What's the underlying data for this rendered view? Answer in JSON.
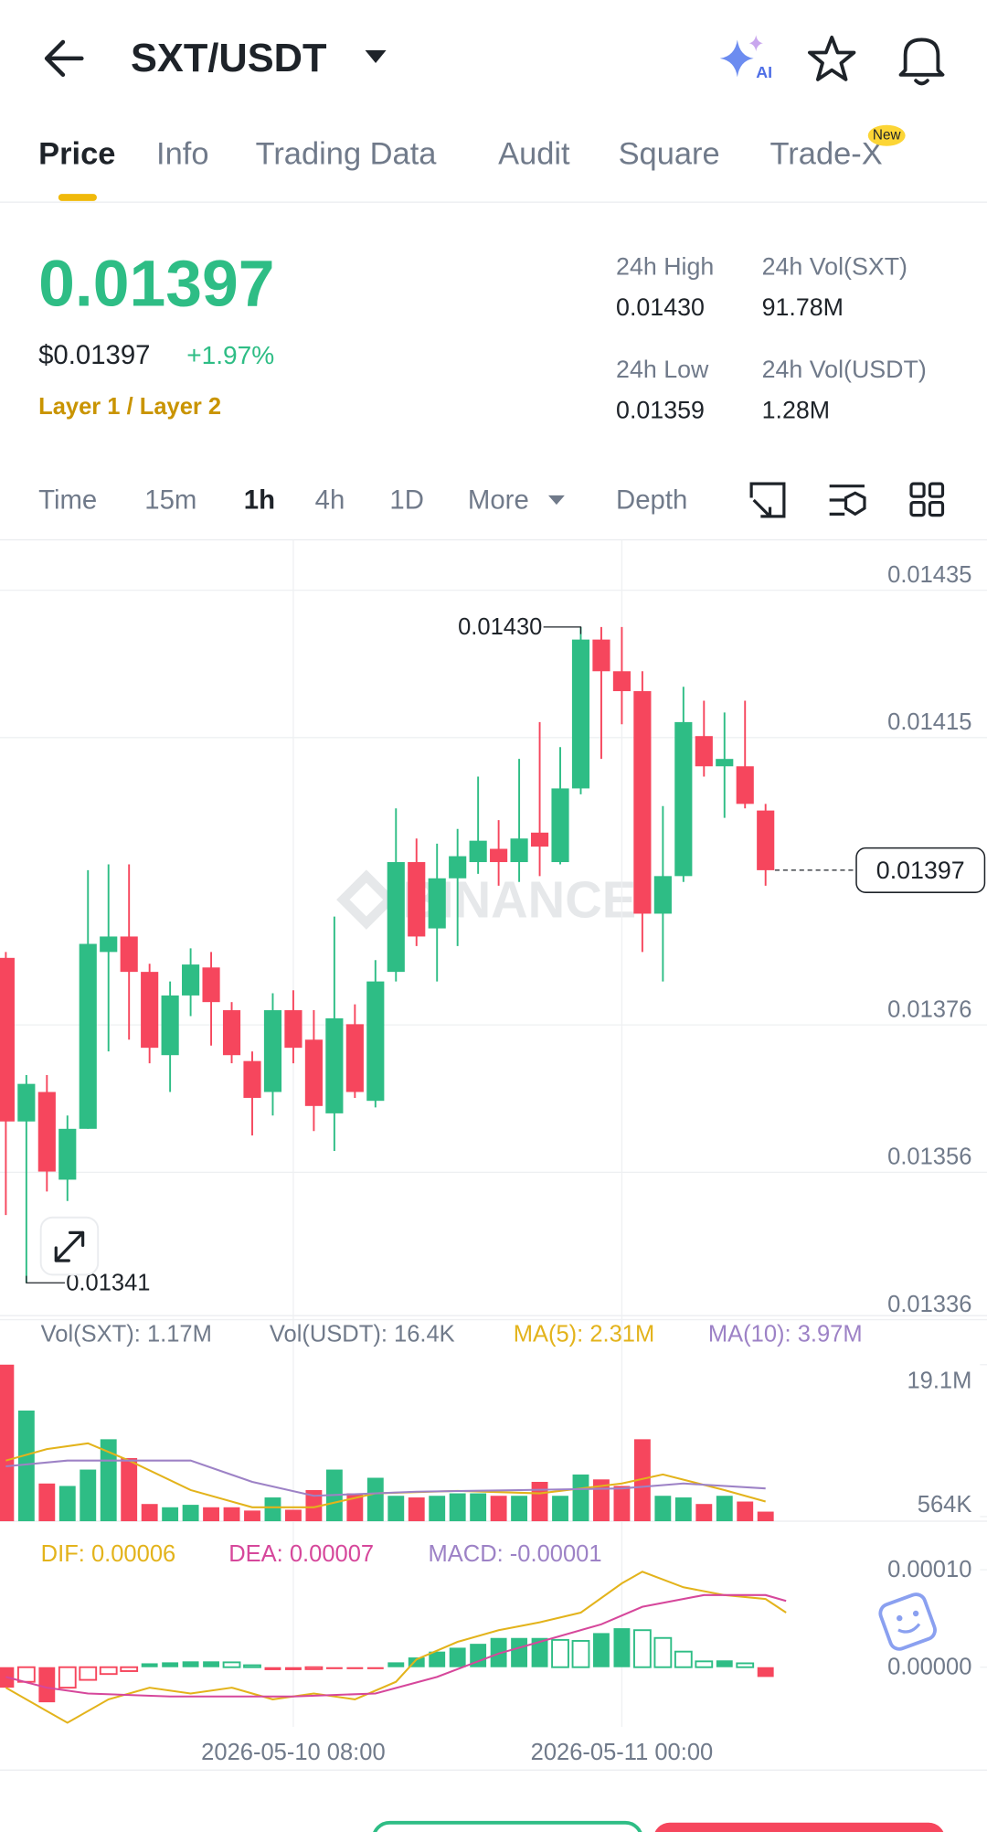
{
  "header": {
    "pair": "SXT/USDT",
    "ai": "AI"
  },
  "tabs": [
    "Price",
    "Info",
    "Trading Data",
    "Audit",
    "Square",
    "Trade-X"
  ],
  "new_badge": "New",
  "price": {
    "last": "0.01397",
    "usd": "$0.01397",
    "change": "+1.97%",
    "tags": "Layer 1 / Layer 2"
  },
  "stats": [
    {
      "label": "24h High",
      "value": "0.01430"
    },
    {
      "label": "24h Vol(SXT)",
      "value": "91.78M"
    },
    {
      "label": "24h Low",
      "value": "0.01359"
    },
    {
      "label": "24h Vol(USDT)",
      "value": "1.28M"
    }
  ],
  "intervals": [
    "Time",
    "15m",
    "1h",
    "4h",
    "1D",
    "More",
    "Depth"
  ],
  "watermark": "BINANCE",
  "chart_data": [
    {
      "type": "candlestick",
      "categories": [
        null,
        null,
        null,
        null,
        null,
        null,
        null,
        null,
        null,
        null,
        null,
        null,
        null,
        null,
        "2026-05-10 08:00",
        null,
        null,
        null,
        null,
        null,
        null,
        null,
        null,
        null,
        null,
        null,
        null,
        null,
        null,
        null,
        "2026-05-11 00:00",
        null,
        null,
        null,
        null,
        null,
        null,
        null
      ],
      "open": [
        0.013851,
        0.013629,
        0.013669,
        0.01355,
        0.013619,
        0.013859,
        0.01388,
        0.013832,
        0.013719,
        0.0138,
        0.013838,
        0.01378,
        0.013711,
        0.013669,
        0.01378,
        0.01374,
        0.01364,
        0.013761,
        0.013657,
        0.013832,
        0.013981,
        0.013891,
        0.013959,
        0.013981,
        0.013999,
        0.013981,
        0.014021,
        0.013981,
        0.014081,
        0.014283,
        0.01424,
        0.014213,
        0.013911,
        0.013962,
        0.014152,
        0.014111,
        0.014111,
        0.014051
      ],
      "high": [
        0.013859,
        0.013692,
        0.013692,
        0.013637,
        0.01397,
        0.013978,
        0.013978,
        0.013843,
        0.013819,
        0.013864,
        0.013859,
        0.013791,
        0.013724,
        0.013803,
        0.013807,
        0.01378,
        0.013907,
        0.013788,
        0.013848,
        0.014054,
        0.014013,
        0.014006,
        0.014026,
        0.014097,
        0.014038,
        0.014121,
        0.014171,
        0.014137,
        0.0143,
        0.0143,
        0.0143,
        0.01424,
        0.014057,
        0.014219,
        0.0142,
        0.014184,
        0.0142,
        0.01406
      ],
      "low": [
        0.013502,
        0.01341,
        0.013534,
        0.013521,
        0.013619,
        0.013724,
        0.01374,
        0.013708,
        0.013669,
        0.013772,
        0.013732,
        0.013708,
        0.01361,
        0.013637,
        0.013708,
        0.013616,
        0.013589,
        0.013661,
        0.013648,
        0.013819,
        0.013867,
        0.013819,
        0.013867,
        0.013965,
        0.013949,
        0.013954,
        0.013962,
        0.013978,
        0.014073,
        0.014121,
        0.014168,
        0.013859,
        0.013819,
        0.013954,
        0.014097,
        0.014041,
        0.014054,
        0.013949
      ],
      "close": [
        0.013629,
        0.01368,
        0.013561,
        0.013619,
        0.01387,
        0.01388,
        0.013832,
        0.013729,
        0.0138,
        0.013842,
        0.013791,
        0.013719,
        0.013661,
        0.01378,
        0.013729,
        0.01365,
        0.013769,
        0.013669,
        0.013819,
        0.013981,
        0.01388,
        0.013959,
        0.013989,
        0.01401,
        0.013981,
        0.014013,
        0.014002,
        0.014081,
        0.014283,
        0.01424,
        0.014213,
        0.013911,
        0.013962,
        0.014171,
        0.014111,
        0.014121,
        0.01406,
        0.01397
      ],
      "up_color": "#2ebd85",
      "down_color": "#f6465d",
      "ylim": [
        0.01336,
        0.01442
      ],
      "yticks": [
        0.01435,
        0.01415,
        0.01376,
        0.01356,
        0.01336
      ],
      "grid": true,
      "max_label": {
        "value": 0.0143,
        "label": "0.01430"
      },
      "min_label": {
        "value": 0.01341,
        "label": "0.01341"
      },
      "last_price": {
        "value": 0.01397,
        "label": "0.01397"
      }
    },
    {
      "type": "bar",
      "header_texts": [
        "Vol(SXT): 1.17M",
        "Vol(USDT): 16.4K"
      ],
      "values": [
        19100000,
        13500000,
        4600000,
        4300000,
        6300000,
        10000000,
        7700000,
        2100000,
        1700000,
        2000000,
        1700000,
        1700000,
        1300000,
        2900000,
        1400000,
        3800000,
        6300000,
        3400000,
        5300000,
        3100000,
        2900000,
        3100000,
        3400000,
        3400000,
        3100000,
        3100000,
        4800000,
        3100000,
        5700000,
        5100000,
        4300000,
        10000000,
        3100000,
        2900000,
        2100000,
        3100000,
        2400000,
        1170000
      ],
      "ylim": [
        0,
        19100000
      ],
      "yticks": [
        {
          "value": 19100000,
          "label": "19.1M"
        },
        {
          "value": 564000,
          "label": "564K"
        }
      ],
      "grid": false,
      "series": [
        {
          "name": "MA(5): 2.31M",
          "color": "#e3b31b",
          "x": [
            0,
            2,
            4,
            6,
            9,
            12,
            15,
            18,
            22,
            26,
            30,
            32,
            35,
            37
          ],
          "values": [
            7400000,
            8800000,
            9500000,
            7400000,
            3800000,
            1700000,
            1700000,
            3400000,
            3700000,
            3400000,
            4600000,
            5700000,
            3800000,
            2400000
          ]
        },
        {
          "name": "MA(10): 3.97M",
          "color": "#9d82c6",
          "x": [
            0,
            3,
            7,
            9,
            12,
            15,
            20,
            25,
            30,
            33,
            37
          ],
          "values": [
            6700000,
            7400000,
            7400000,
            7400000,
            4800000,
            3100000,
            3600000,
            3800000,
            4000000,
            4600000,
            4000000
          ]
        }
      ]
    },
    {
      "type": "bar",
      "name": "MACD: -0.00001",
      "name_color": "#9d82c6",
      "values": [
        -2.1e-05,
        -1.5e-05,
        -3.6e-05,
        -2.1e-05,
        -1.3e-05,
        -7e-06,
        -4e-06,
        4e-06,
        5e-06,
        6e-06,
        6e-06,
        5e-06,
        2e-06,
        -3e-06,
        -3e-06,
        -2e-06,
        -2e-06,
        -2e-06,
        -2e-06,
        5e-06,
        1e-05,
        1.6e-05,
        2e-05,
        2.4e-05,
        3e-05,
        3e-05,
        3e-05,
        2.8e-05,
        2.7e-05,
        3.5e-05,
        4e-05,
        3.8e-05,
        3e-05,
        1.6e-05,
        6e-06,
        7e-06,
        4e-06,
        -1e-05
      ],
      "ylim": [
        -6e-05,
        0.00013
      ],
      "yticks": [
        {
          "value": 0.0001,
          "label": "0.00010"
        },
        {
          "value": 0,
          "label": "0.00000"
        }
      ],
      "grid": false,
      "series": [
        {
          "name": "DIF: 0.00006",
          "color": "#e3b31b",
          "x": [
            0,
            2,
            3,
            5,
            7,
            9,
            11,
            13,
            15,
            17,
            19,
            20,
            22,
            24,
            26,
            28,
            30,
            31,
            33,
            35,
            37,
            38
          ],
          "values": [
            -2.1e-05,
            -4.5e-05,
            -5.7e-05,
            -3.3e-05,
            -2.1e-05,
            -2.7e-05,
            -2.1e-05,
            -3.3e-05,
            -2.7e-05,
            -3.3e-05,
            -1.5e-05,
            8e-06,
            2.6e-05,
            3.8e-05,
            4.6e-05,
            5.6e-05,
            8.6e-05,
            9.8e-05,
            8.2e-05,
            7.4e-05,
            7e-05,
            5.6e-05
          ]
        },
        {
          "name": "DEA: 0.00007",
          "color": "#d6479b",
          "x": [
            0,
            2,
            4,
            8,
            14,
            18,
            21,
            24,
            27,
            29,
            31,
            34,
            37,
            38
          ],
          "values": [
            -1e-05,
            -2.1e-05,
            -2.7e-05,
            -3e-05,
            -3e-05,
            -2.7e-05,
            -1e-05,
            1.4e-05,
            3.2e-05,
            4.4e-05,
            6.2e-05,
            7.4e-05,
            7.4e-05,
            6.8e-05
          ]
        }
      ]
    }
  ]
}
